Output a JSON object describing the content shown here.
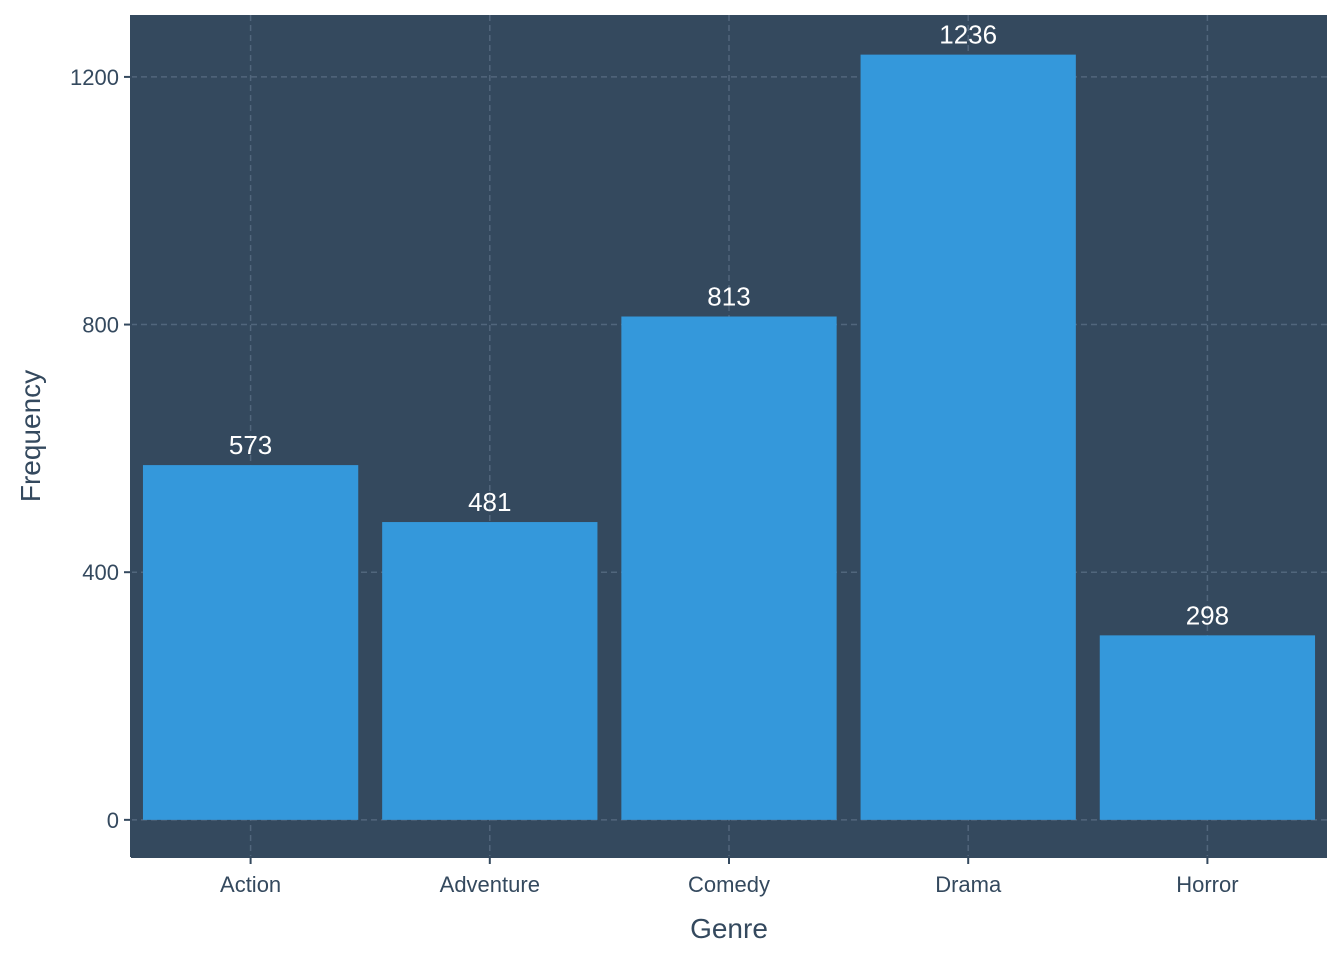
{
  "chart_data": {
    "type": "bar",
    "categories": [
      "Action",
      "Adventure",
      "Comedy",
      "Drama",
      "Horror"
    ],
    "values": [
      573,
      481,
      813,
      1236,
      298
    ],
    "data_labels": [
      "573",
      "481",
      "813",
      "1236",
      "298"
    ],
    "title": "",
    "xlabel": "Genre",
    "ylabel": "Frequency",
    "ylim": [
      -60,
      1300
    ],
    "yticks": [
      0,
      400,
      800,
      1200
    ],
    "ytick_labels": [
      "0",
      "400",
      "800",
      "1200"
    ],
    "grid": true,
    "legend": "none",
    "colors": {
      "panel_background": "#34495e",
      "bar_fill": "#3498db",
      "grid": "#51667c",
      "text": "#34495e",
      "data_label": "#ffffff",
      "axis_line": "#34495e"
    }
  }
}
